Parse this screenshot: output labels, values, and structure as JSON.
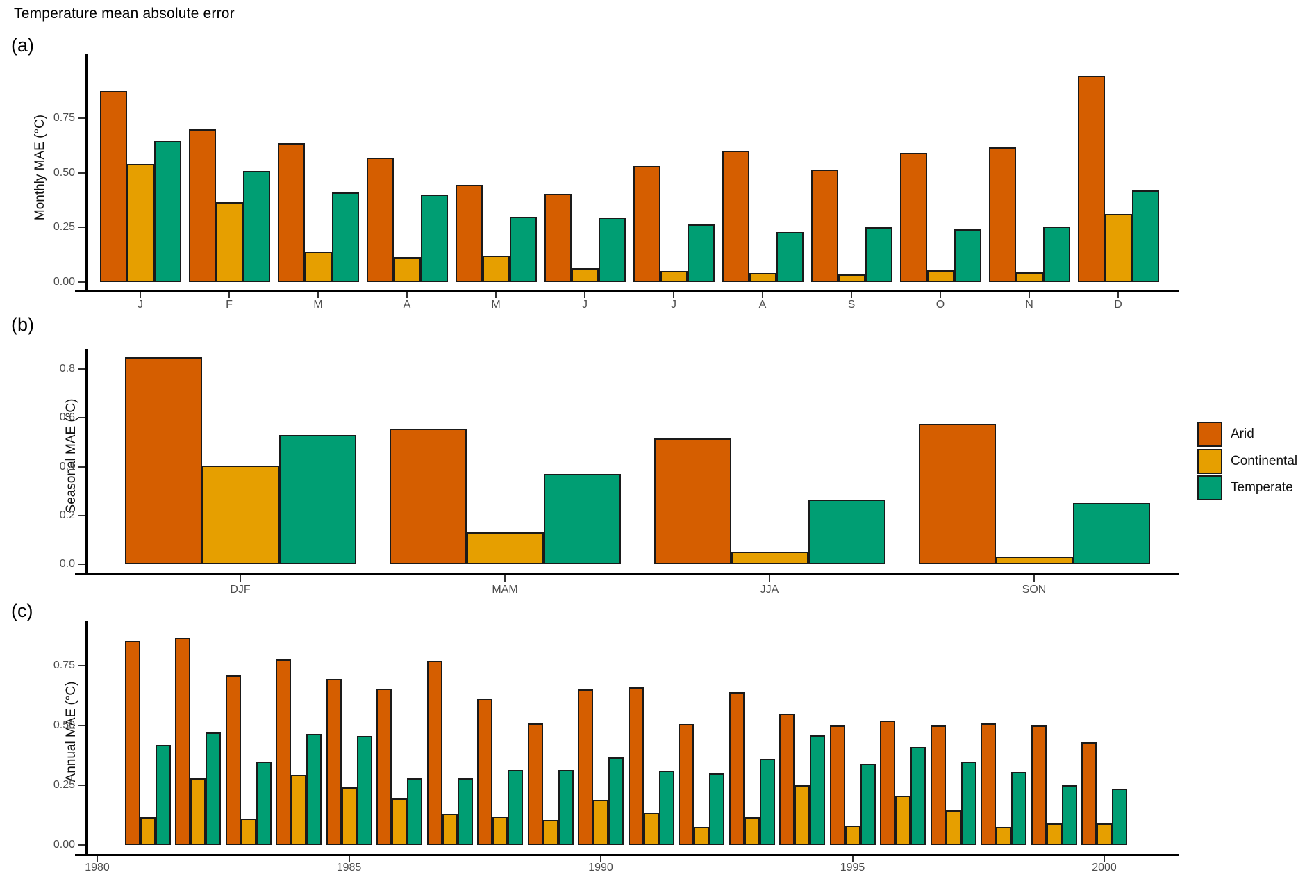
{
  "title": "Temperature mean absolute error",
  "colors": {
    "arid": "#D55E00",
    "continental": "#E69F00",
    "temperate": "#009E73",
    "axis": "#000000",
    "tick_text": "#4d4d4d"
  },
  "legend": {
    "position": "right",
    "items": [
      {
        "label": "Arid",
        "color_key": "arid"
      },
      {
        "label": "Continental",
        "color_key": "continental"
      },
      {
        "label": "Temperate",
        "color_key": "temperate"
      }
    ]
  },
  "chart_data": [
    {
      "id": "a",
      "panel_label": "(a)",
      "type": "bar",
      "title": "",
      "xlabel": "",
      "ylabel": "Monthly MAE (°C)",
      "grid": false,
      "ylim": [
        0,
        1.04
      ],
      "yticks": [
        0,
        0.25,
        0.5,
        0.75
      ],
      "ytick_labels": [
        "0.00",
        "0.25",
        "0.50",
        "0.75"
      ],
      "categories": [
        "J",
        "F",
        "M",
        "A",
        "M",
        "J",
        "J",
        "A",
        "S",
        "O",
        "N",
        "D"
      ],
      "series": [
        {
          "name": "Arid",
          "values": [
            0.875,
            0.7,
            0.635,
            0.57,
            0.445,
            0.405,
            0.53,
            0.6,
            0.515,
            0.59,
            0.615,
            0.945
          ]
        },
        {
          "name": "Continental",
          "values": [
            0.54,
            0.365,
            0.14,
            0.115,
            0.12,
            0.065,
            0.05,
            0.04,
            0.035,
            0.055,
            0.045,
            0.31
          ]
        },
        {
          "name": "Temperate",
          "values": [
            0.645,
            0.51,
            0.41,
            0.4,
            0.3,
            0.295,
            0.265,
            0.23,
            0.25,
            0.24,
            0.255,
            0.42
          ]
        }
      ]
    },
    {
      "id": "b",
      "panel_label": "(b)",
      "type": "bar",
      "title": "",
      "xlabel": "",
      "ylabel": "Seasonal MAE (°C)",
      "grid": false,
      "ylim": [
        0,
        0.88
      ],
      "yticks": [
        0,
        0.2,
        0.4,
        0.6,
        0.8
      ],
      "ytick_labels": [
        "0.0",
        "0.2",
        "0.4",
        "0.6",
        "0.8"
      ],
      "categories": [
        "DJF",
        "MAM",
        "JJA",
        "SON"
      ],
      "series": [
        {
          "name": "Arid",
          "values": [
            0.85,
            0.555,
            0.515,
            0.575
          ]
        },
        {
          "name": "Continental",
          "values": [
            0.405,
            0.13,
            0.05,
            0.03
          ]
        },
        {
          "name": "Temperate",
          "values": [
            0.53,
            0.37,
            0.265,
            0.25
          ]
        }
      ]
    },
    {
      "id": "c",
      "panel_label": "(c)",
      "type": "bar",
      "title": "",
      "xlabel": "",
      "ylabel": "Annual MAE (°C)",
      "grid": false,
      "ylim": [
        0,
        0.93
      ],
      "yticks": [
        0,
        0.25,
        0.5,
        0.75
      ],
      "ytick_labels": [
        "0.00",
        "0.25",
        "0.50",
        "0.75"
      ],
      "x_axis_ticks": [
        1980,
        1985,
        1990,
        1995,
        2000
      ],
      "categories": [
        1981,
        1982,
        1983,
        1984,
        1985,
        1986,
        1987,
        1988,
        1989,
        1990,
        1991,
        1992,
        1993,
        1994,
        1995,
        1996,
        1997,
        1998,
        1999,
        2000
      ],
      "series": [
        {
          "name": "Arid",
          "values": [
            0.855,
            0.865,
            0.71,
            0.775,
            0.695,
            0.655,
            0.77,
            0.61,
            0.51,
            0.65,
            0.66,
            0.505,
            0.64,
            0.55,
            0.5,
            0.52,
            0.5,
            0.51,
            0.5,
            0.43
          ]
        },
        {
          "name": "Continental",
          "values": [
            0.115,
            0.28,
            0.11,
            0.295,
            0.24,
            0.195,
            0.13,
            0.12,
            0.105,
            0.19,
            0.135,
            0.075,
            0.115,
            0.25,
            0.08,
            0.205,
            0.145,
            0.075,
            0.09,
            0.09
          ]
        },
        {
          "name": "Temperate",
          "values": [
            0.42,
            0.47,
            0.35,
            0.465,
            0.455,
            0.28,
            0.28,
            0.315,
            0.315,
            0.365,
            0.31,
            0.3,
            0.36,
            0.46,
            0.34,
            0.41,
            0.35,
            0.305,
            0.25,
            0.235
          ]
        }
      ]
    }
  ]
}
